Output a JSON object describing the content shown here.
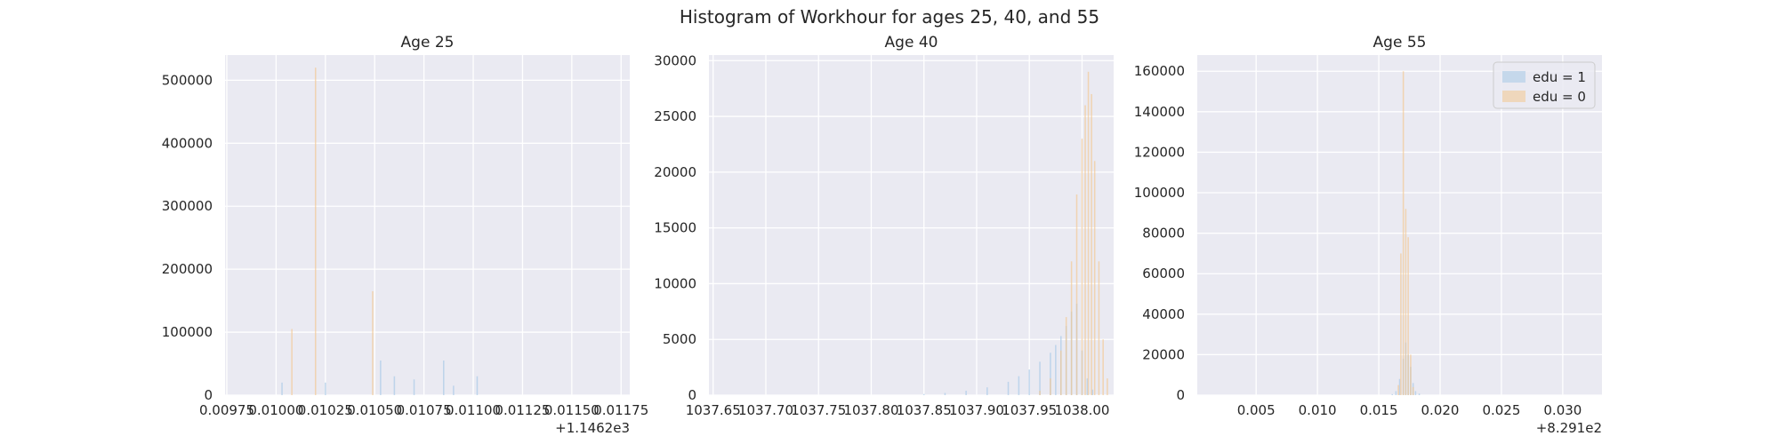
{
  "figure": {
    "title": "Histogram of Workhour for ages 25, 40, and 55"
  },
  "colors": {
    "background": "#ffffff",
    "axes_bg": "#eaeaf2",
    "grid": "#ffffff",
    "edu1": "#a6c8e6",
    "edu0": "#f3c68f"
  },
  "chart_data": [
    {
      "type": "bar",
      "title": "Age 25",
      "xlim": [
        0.009741,
        0.011794
      ],
      "ylim": [
        0,
        540000
      ],
      "xticks": [
        0.00975,
        0.01,
        0.01025,
        0.0105,
        0.01075,
        0.011,
        0.01125,
        0.0115,
        0.01175
      ],
      "xtick_labels": [
        "0.00975",
        "0.01000",
        "0.01025",
        "0.01050",
        "0.01075",
        "0.01100",
        "0.01125",
        "0.01150",
        "0.01175"
      ],
      "yticks": [
        0,
        100000,
        200000,
        300000,
        400000,
        500000
      ],
      "ytick_labels": [
        "0",
        "100000",
        "200000",
        "300000",
        "400000",
        "500000"
      ],
      "offset_text": "+1.1462e3",
      "series": [
        {
          "legend": "edu = 1",
          "bars": [
            [
              0.01003,
              20000
            ],
            [
              0.01025,
              20000
            ],
            [
              0.01053,
              55000
            ],
            [
              0.0106,
              30000
            ],
            [
              0.0107,
              25000
            ],
            [
              0.01085,
              55000
            ],
            [
              0.0109,
              15000
            ],
            [
              0.01102,
              30000
            ]
          ]
        },
        {
          "legend": "edu = 0",
          "bars": [
            [
              0.01008,
              105000
            ],
            [
              0.0102,
              520000
            ],
            [
              0.01049,
              165000
            ]
          ]
        }
      ]
    },
    {
      "type": "bar",
      "title": "Age 40",
      "xlim": [
        1037.646,
        1038.03
      ],
      "ylim": [
        0,
        30500
      ],
      "xticks": [
        1037.65,
        1037.7,
        1037.75,
        1037.8,
        1037.85,
        1037.9,
        1037.95,
        1038.0
      ],
      "xtick_labels": [
        "1037.65",
        "1037.70",
        "1037.75",
        "1037.80",
        "1037.85",
        "1037.90",
        "1037.95",
        "1038.00"
      ],
      "yticks": [
        0,
        5000,
        10000,
        15000,
        20000,
        25000,
        30000
      ],
      "ytick_labels": [
        "0",
        "5000",
        "10000",
        "15000",
        "20000",
        "25000",
        "30000"
      ],
      "offset_text": "",
      "series": [
        {
          "legend": "edu = 1",
          "bars": [
            [
              1037.85,
              100
            ],
            [
              1037.87,
              200
            ],
            [
              1037.89,
              400
            ],
            [
              1037.91,
              700
            ],
            [
              1037.93,
              1200
            ],
            [
              1037.94,
              1700
            ],
            [
              1037.95,
              2300
            ],
            [
              1037.96,
              3000
            ],
            [
              1037.97,
              3800
            ],
            [
              1037.975,
              4500
            ],
            [
              1037.98,
              5300
            ],
            [
              1037.985,
              6200
            ],
            [
              1037.99,
              7500
            ],
            [
              1037.995,
              8200
            ],
            [
              1038.0,
              4000
            ],
            [
              1038.005,
              1500
            ],
            [
              1038.01,
              500
            ]
          ]
        },
        {
          "legend": "edu = 0",
          "bars": [
            [
              1037.96,
              400
            ],
            [
              1037.97,
              1500
            ],
            [
              1037.98,
              4000
            ],
            [
              1037.985,
              7000
            ],
            [
              1037.99,
              12000
            ],
            [
              1037.995,
              18000
            ],
            [
              1038.0,
              23000
            ],
            [
              1038.003,
              26000
            ],
            [
              1038.006,
              29000
            ],
            [
              1038.009,
              27000
            ],
            [
              1038.012,
              21000
            ],
            [
              1038.016,
              12000
            ],
            [
              1038.02,
              5000
            ],
            [
              1038.024,
              1500
            ]
          ]
        }
      ]
    },
    {
      "type": "bar",
      "title": "Age 55",
      "xlim": [
        0.0002,
        0.0332
      ],
      "ylim": [
        0,
        168000
      ],
      "xticks": [
        0.005,
        0.01,
        0.015,
        0.02,
        0.025,
        0.03
      ],
      "xtick_labels": [
        "0.005",
        "0.010",
        "0.015",
        "0.020",
        "0.025",
        "0.030"
      ],
      "yticks": [
        0,
        20000,
        40000,
        60000,
        80000,
        100000,
        120000,
        140000,
        160000
      ],
      "ytick_labels": [
        "0",
        "20000",
        "40000",
        "60000",
        "80000",
        "100000",
        "120000",
        "140000",
        "160000"
      ],
      "offset_text": "+8.291e2",
      "series": [
        {
          "legend": "edu = 1",
          "bars": [
            [
              0.0161,
              500
            ],
            [
              0.0164,
              2000
            ],
            [
              0.0167,
              8000
            ],
            [
              0.017,
              18000
            ],
            [
              0.0172,
              26000
            ],
            [
              0.0174,
              20000
            ],
            [
              0.0176,
              14000
            ],
            [
              0.0178,
              6000
            ],
            [
              0.018,
              2000
            ],
            [
              0.0183,
              800
            ]
          ]
        },
        {
          "legend": "edu = 0",
          "bars": [
            [
              0.0166,
              5000
            ],
            [
              0.0168,
              70000
            ],
            [
              0.017,
              160000
            ],
            [
              0.0172,
              92000
            ],
            [
              0.0174,
              78000
            ],
            [
              0.0176,
              20000
            ],
            [
              0.0178,
              4000
            ]
          ]
        }
      ]
    }
  ],
  "legend": {
    "position": "top-right of Age 55 panel",
    "entries": [
      "edu = 1",
      "edu = 0"
    ]
  }
}
